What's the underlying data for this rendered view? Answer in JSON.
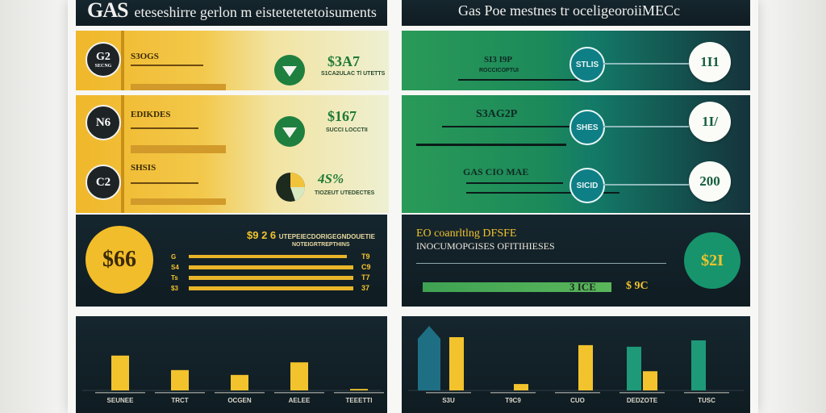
{
  "header_left": {
    "title": "GAS",
    "subtitle": "eteseshirre gerlon m eistetetetetoisuments"
  },
  "header_right": {
    "title": "Gas Poe mestnes tr oceligeoroiiMECc"
  },
  "yellow_rows": [
    {
      "circle": "G2",
      "sub": "SECNG",
      "label": "S3OGS",
      "value": "$3A7",
      "caption": "S1CA2ULAC Tl UTETTS"
    },
    {
      "circle": "N6",
      "sub": "",
      "label": "EDIKDES",
      "value": "$167",
      "caption": "SUCCI LOCCTII"
    },
    {
      "circle": "C2",
      "sub": "",
      "label": "SHSIS",
      "value": "4S%",
      "caption": "TIOZEUT UTEDECTES"
    }
  ],
  "green_rows": [
    {
      "label": "SI3 I9P",
      "caption": "ROCCICOPTUI",
      "teal": "STLIS",
      "white": "1I1"
    },
    {
      "label": "S3AG2P",
      "caption": "",
      "teal": "SHES",
      "white": "1I/"
    },
    {
      "label": "GAS CIO MAE",
      "caption": "",
      "teal": "SICID",
      "white": "200"
    }
  ],
  "summary_left": {
    "circle": "$66",
    "title": "$9 2 6",
    "title_rest": "UTEPEIECDORIGEGNDOUETIE",
    "subtitle": "NOTEIGRTREPTHINS",
    "bars": [
      {
        "left": "G",
        "right": "T9"
      },
      {
        "left": "S4",
        "right": "C9"
      },
      {
        "left": "Ts",
        "right": "T7"
      },
      {
        "left": "$3",
        "right": "37"
      }
    ]
  },
  "summary_right": {
    "title": "EO coanrltlng DFSFE",
    "subtitle": "INOCUMOPGISES OFITIHIESES",
    "bar_label": "3 ICE",
    "value": "$ 9C",
    "circle": "$2I"
  },
  "chart_left": {
    "categories": [
      "SEUNEE",
      "TRCT",
      "OCGEN",
      "AELEE",
      "TEEETTI"
    ],
    "values": [
      0.72,
      0.42,
      0.32,
      0.58,
      0.03
    ]
  },
  "chart_right": {
    "categories": [
      "S3U",
      "T9C9",
      "CUO",
      "DEDZOTE",
      "TUSC"
    ],
    "series": [
      {
        "name": "",
        "values": [
          0.0,
          0.0,
          0.0,
          0.82,
          0.94
        ]
      },
      {
        "name": "",
        "values": [
          1.0,
          0.12,
          0.85,
          0.36,
          0.0
        ]
      }
    ]
  },
  "colors": {
    "yellow": "#f2c32c",
    "green": "#21a35a",
    "teal": "#0f7f86",
    "navy": "#122128"
  }
}
